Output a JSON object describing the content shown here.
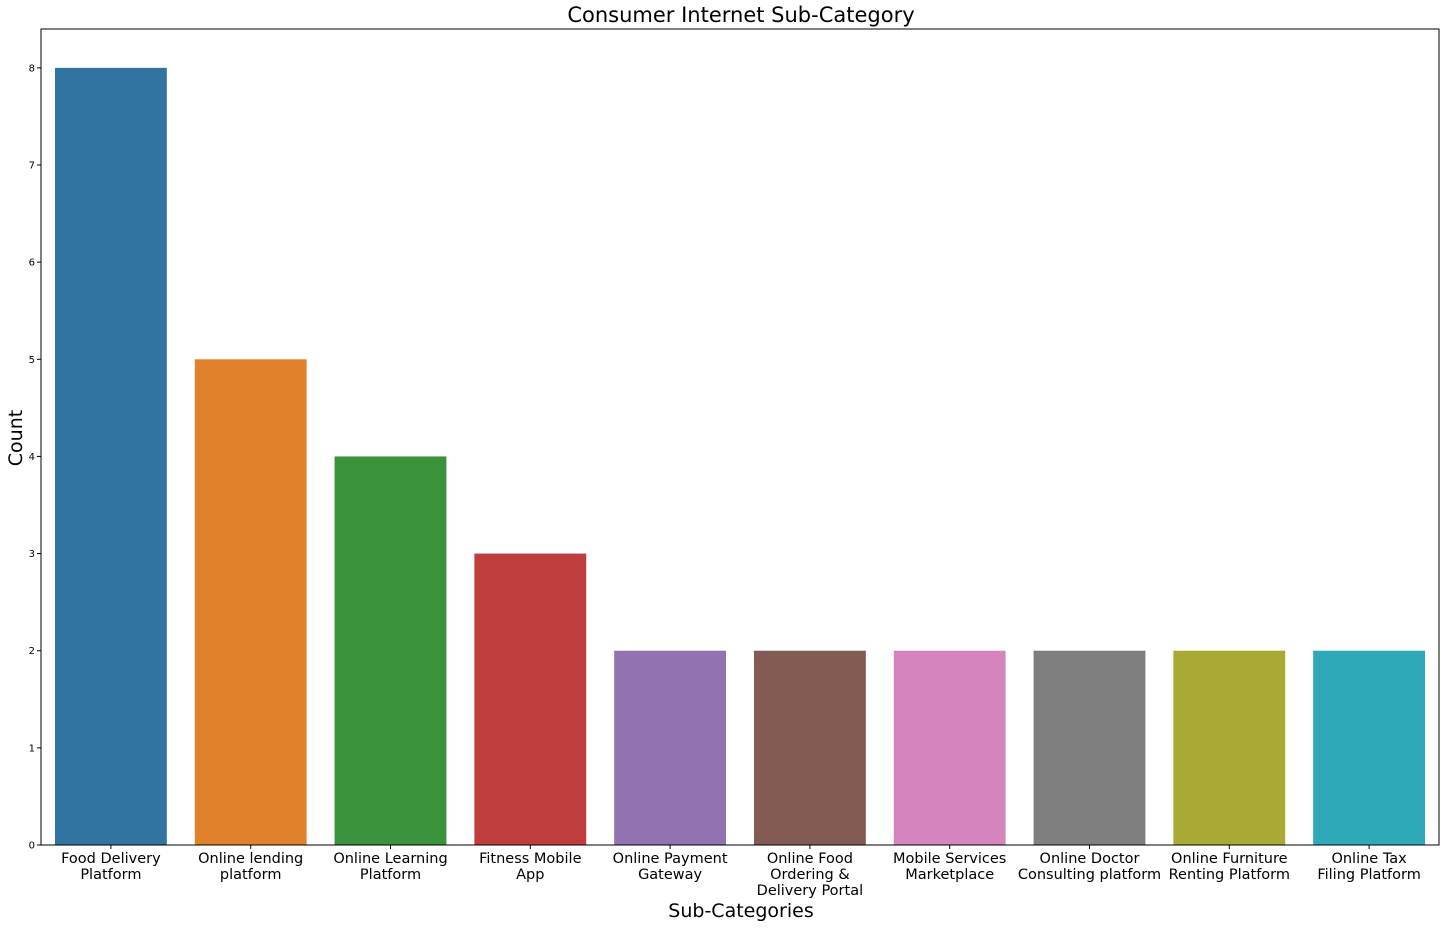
{
  "chart_data": {
    "type": "bar",
    "title": "Consumer Internet Sub-Category",
    "xlabel": "Sub-Categories",
    "ylabel": "Count",
    "categories": [
      "Food Delivery Platform",
      "Online lending platform",
      "Online Learning Platform",
      "Fitness Mobile App",
      "Online Payment Gateway",
      "Online Food Ordering & Delivery Portal",
      "Mobile Services Marketplace",
      "Online Doctor Consulting platform",
      "Online Furniture Renting Platform",
      "Online Tax Filing Platform"
    ],
    "category_label_lines": [
      [
        "Food Delivery",
        "Platform"
      ],
      [
        "Online lending",
        "platform"
      ],
      [
        "Online Learning",
        "Platform"
      ],
      [
        "Fitness Mobile",
        "App"
      ],
      [
        "Online Payment",
        "Gateway"
      ],
      [
        "Online Food",
        "Ordering &",
        "Delivery Portal"
      ],
      [
        "Mobile Services",
        "Marketplace"
      ],
      [
        "Online Doctor",
        "Consulting platform"
      ],
      [
        "Online Furniture",
        "Renting Platform"
      ],
      [
        "Online Tax",
        "Filing Platform"
      ]
    ],
    "values": [
      8,
      5,
      4,
      3,
      2,
      2,
      2,
      2,
      2,
      2
    ],
    "colors": [
      "#3274a1",
      "#e1812c",
      "#3a923a",
      "#c03d3e",
      "#9372b2",
      "#845b53",
      "#d684bd",
      "#7f7f7f",
      "#a9aa35",
      "#2ea9b8"
    ],
    "ylim": [
      0,
      8.4
    ],
    "yticks": [
      0,
      1,
      2,
      3,
      4,
      5,
      6,
      7,
      8
    ],
    "grid": false,
    "legend": "none"
  }
}
